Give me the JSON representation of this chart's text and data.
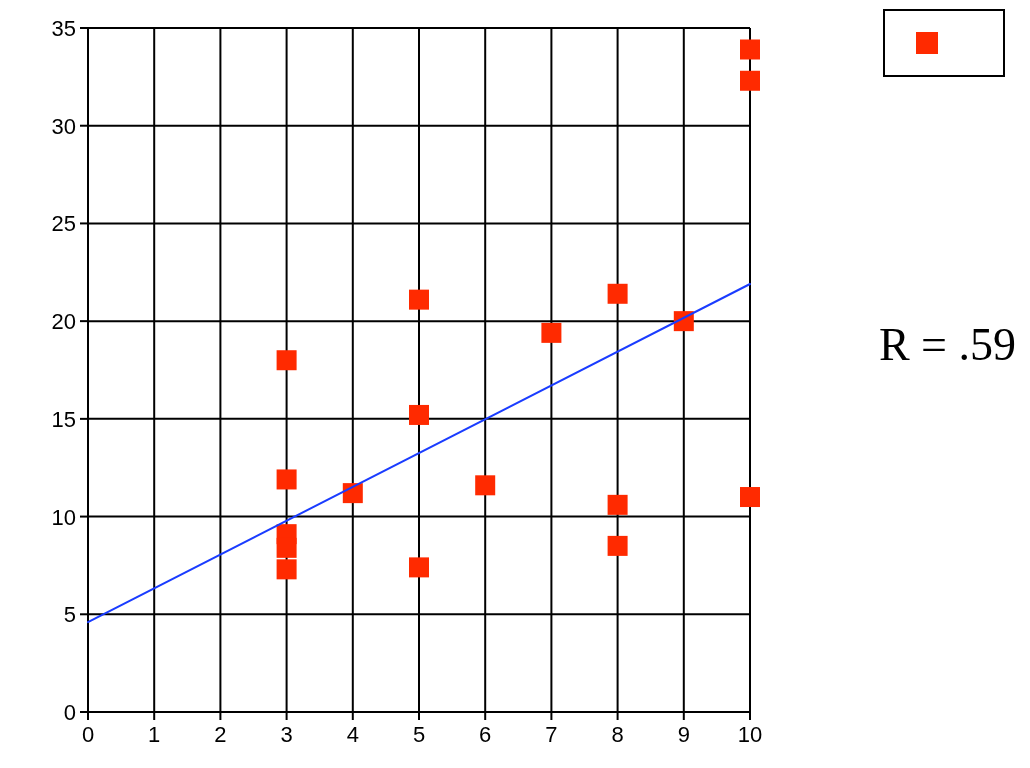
{
  "chart_data": {
    "type": "scatter",
    "xlim": [
      0,
      10
    ],
    "xticks": [
      0,
      1,
      2,
      3,
      4,
      5,
      6,
      7,
      8,
      9,
      10
    ],
    "ylim": [
      0,
      35
    ],
    "yticks": [
      0,
      5,
      10,
      15,
      20,
      25,
      30,
      35
    ],
    "grid": true,
    "annotations": [
      "R = .59"
    ],
    "series": [
      {
        "marker": "square",
        "color": "#ff2a00",
        "x": [
          3,
          3,
          3,
          3,
          3,
          4,
          5,
          5,
          5,
          6,
          7,
          8,
          8,
          8,
          9,
          10,
          10,
          10
        ],
        "values": [
          18,
          11.9,
          9.1,
          8.4,
          7.3,
          11.2,
          21.1,
          15.2,
          7.4,
          11.6,
          19.4,
          21.4,
          10.6,
          8.5,
          20,
          33.9,
          32.3,
          11
        ]
      },
      {
        "type": "line",
        "color": "#1a3cff",
        "x": [
          0,
          10
        ],
        "values": [
          4.6,
          21.9
        ]
      }
    ]
  }
}
